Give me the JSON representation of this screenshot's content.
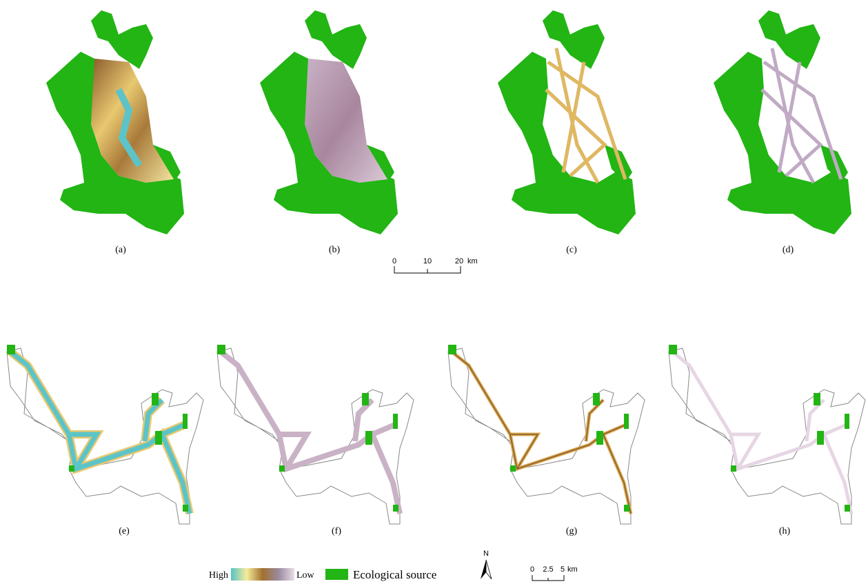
{
  "panels": [
    {
      "label": "(a)"
    },
    {
      "label": "(b)"
    },
    {
      "label": "(c)"
    },
    {
      "label": "(d)"
    },
    {
      "label": "(e)"
    },
    {
      "label": "(f)"
    },
    {
      "label": "(g)"
    },
    {
      "label": "(h)"
    }
  ],
  "scale_bars": [
    {
      "ticks": [
        "0",
        "10",
        "20"
      ],
      "unit": "km"
    },
    {
      "ticks": [
        "0",
        "2.5",
        "5"
      ],
      "unit": "km"
    }
  ],
  "legend": {
    "high": "High",
    "low": "Low",
    "source": "Ecological source"
  },
  "north": "N"
}
